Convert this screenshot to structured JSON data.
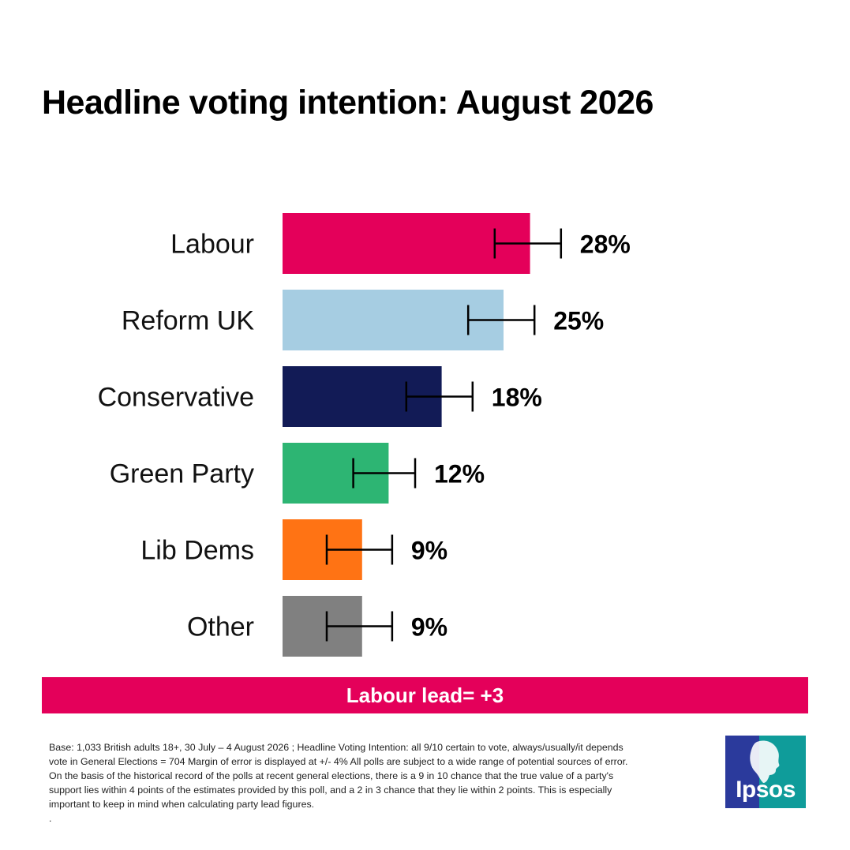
{
  "title": "Headline voting intention: August 2026",
  "chart_data": {
    "type": "bar",
    "orientation": "horizontal",
    "categories": [
      "Labour",
      "Reform UK",
      "Conservative",
      "Green Party",
      "Lib Dems",
      "Other"
    ],
    "values": [
      28,
      25,
      18,
      12,
      9,
      9
    ],
    "value_labels": [
      "28%",
      "25%",
      "18%",
      "12%",
      "9%",
      "9%"
    ],
    "colors": [
      "#e4005a",
      "#a6cde2",
      "#121b56",
      "#2db573",
      "#ff7314",
      "#808080"
    ],
    "error_bars": [
      {
        "low": 24,
        "high": 31.5
      },
      {
        "low": 21,
        "high": 28.5
      },
      {
        "low": 14,
        "high": 21.5
      },
      {
        "low": 8,
        "high": 15
      },
      {
        "low": 5,
        "high": 12.4
      },
      {
        "low": 5,
        "high": 12.4
      }
    ],
    "xlim": [
      0,
      100
    ],
    "grid": false,
    "legend": false
  },
  "lead": "Labour lead= +3",
  "footnote": [
    "Base: 1,033  British adults 18+, 30 July – 4 August 2026 ; Headline Voting Intention:  all  9/10 certain to vote, always/usually/it depends",
    "vote in General Elections = 704 Margin of error is displayed at +/- 4% All polls are subject to a wide range of potential sources of error.",
    "On the basis of the historical record of the polls at recent general elections, there is a 9 in 10 chance that the true value of a party's",
    "support lies within 4 points of the estimates provided by this poll, and a 2 in 3 chance that they lie within 2 points. This is especially",
    "important to keep in mind when calculating party lead figures.",
    "."
  ],
  "logo": {
    "text": "Ipsos",
    "colors": [
      "#2b3a9c",
      "#0f9c9a"
    ]
  }
}
